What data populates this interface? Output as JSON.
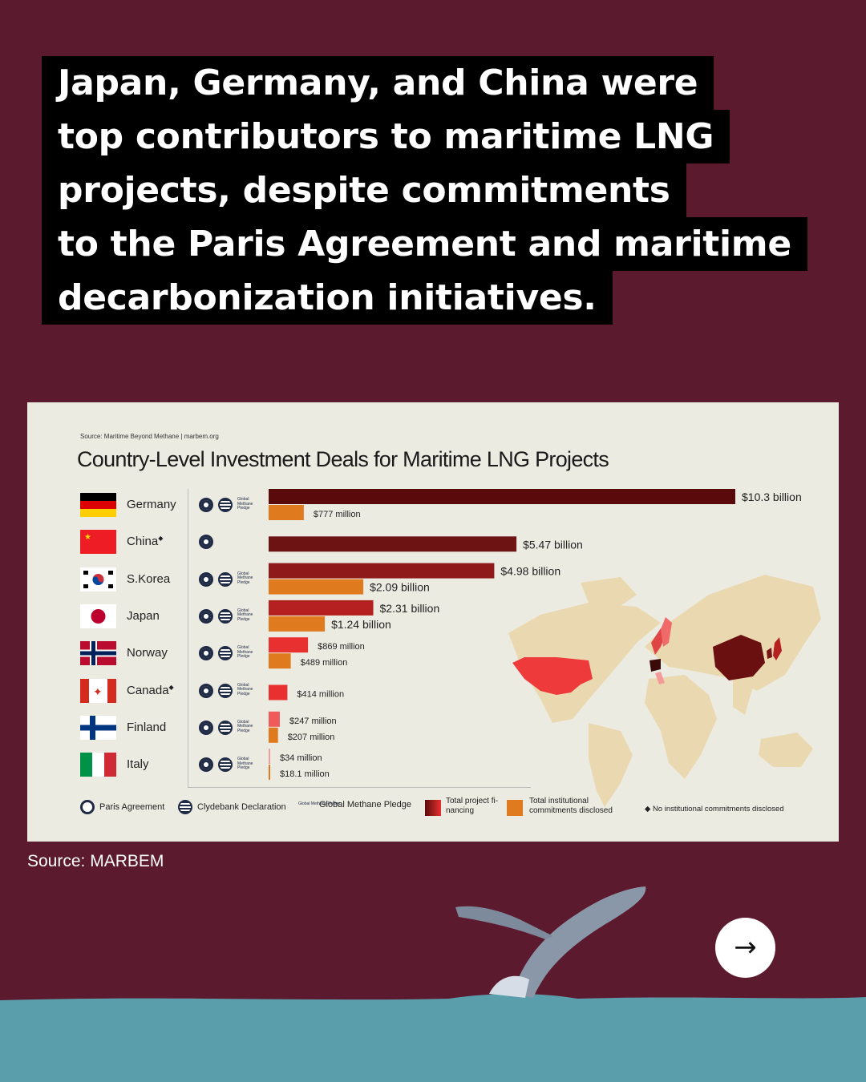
{
  "headline": {
    "lines": [
      "Japan, Germany, and China were",
      "top contributors to maritime LNG",
      "projects, despite commitments",
      "to the Paris Agreement and maritime",
      "decarbonization initiatives."
    ]
  },
  "source_caption": "Source: MARBEM",
  "next_icon": "arrow-right-icon",
  "chart_data": {
    "type": "bar",
    "orientation": "horizontal",
    "source": "Source: Maritime Beyond Methane | marbem.org",
    "title": "Country-Level Investment Deals for Maritime LNG Projects",
    "categories": [
      "Germany",
      "China",
      "S.Korea",
      "Japan",
      "Norway",
      "Canada",
      "Finland",
      "Italy"
    ],
    "category_markers": [
      "",
      "◆",
      "",
      "",
      "",
      "◆",
      "",
      ""
    ],
    "series": [
      {
        "name": "Total project financing",
        "color": "#8b1a1a",
        "values_usd_millions": [
          10300,
          5470,
          4980,
          2310,
          869,
          414,
          247,
          34
        ],
        "labels": [
          "$10.3 billion",
          "$5.47 billion",
          "$4.98 billion",
          "$2.31 billion",
          "$869 million",
          "$414 million",
          "$247 million",
          "$34 million"
        ]
      },
      {
        "name": "Total institutional commitments disclosed",
        "color": "#e07a1f",
        "values_usd_millions": [
          777,
          null,
          2090,
          1240,
          489,
          null,
          207,
          18.1
        ],
        "labels": [
          "$777 million",
          "",
          "$2.09 billion",
          "$1.24 billion",
          "$489 million",
          "",
          "$207 million",
          "$18.1 million"
        ]
      }
    ],
    "pledges": [
      [
        "Paris Agreement",
        "Clydebank Declaration",
        "Global Methane Pledge"
      ],
      [
        "Paris Agreement"
      ],
      [
        "Paris Agreement",
        "Clydebank Declaration",
        "Global Methane Pledge"
      ],
      [
        "Paris Agreement",
        "Clydebank Declaration",
        "Global Methane Pledge"
      ],
      [
        "Paris Agreement",
        "Clydebank Declaration",
        "Global Methane Pledge"
      ],
      [
        "Paris Agreement",
        "Clydebank Declaration",
        "Global Methane Pledge"
      ],
      [
        "Paris Agreement",
        "Clydebank Declaration",
        "Global Methane Pledge"
      ],
      [
        "Paris Agreement",
        "Clydebank Declaration",
        "Global Methane Pledge"
      ]
    ],
    "gmp_icon_text": "Global Methane Pledge",
    "legend": {
      "paris": "Paris Agreement",
      "clydebank": "Clydebank Declaration",
      "gmp": "Global Methane Pledge",
      "financing": "Total project fi- nancing",
      "institutional": "Total institutional commitments disclosed",
      "no_commitments": "◆ No institutional commitments disclosed"
    },
    "map_highlight_colors": {
      "Germany": "#3a0a0a",
      "China": "#6b1010",
      "S.Korea": "#7a1515",
      "Japan": "#b52020",
      "Norway": "#e04545",
      "Canada": "#ee3a3a",
      "Finland": "#f06a6a",
      "Italy": "#f59a9a"
    }
  }
}
